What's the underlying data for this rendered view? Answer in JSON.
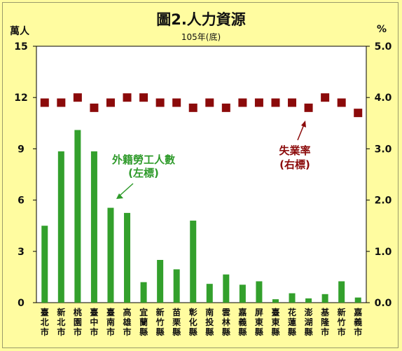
{
  "chart_data": {
    "type": "bar",
    "title": "圖2.人力資源",
    "subtitle": "105年(底)",
    "y_left_unit": "萬人",
    "y_right_unit": "%",
    "y_left_ticks": [
      "0",
      "3",
      "6",
      "9",
      "12",
      "15"
    ],
    "y_right_ticks": [
      "0.0",
      "1.0",
      "2.0",
      "3.0",
      "4.0",
      "5.0"
    ],
    "ylim_left": [
      0,
      15
    ],
    "ylim_right": [
      0,
      5
    ],
    "categories": [
      "臺北市",
      "新北市",
      "桃園市",
      "臺中市",
      "臺南市",
      "高雄市",
      "宜蘭縣",
      "新竹縣",
      "苗栗縣",
      "彰化縣",
      "南投縣",
      "雲林縣",
      "嘉義縣",
      "屏東縣",
      "臺東縣",
      "花蓮縣",
      "澎湖縣",
      "基隆市",
      "新竹市",
      "嘉義市"
    ],
    "series": [
      {
        "name": "外籍勞工人數 (左標)",
        "type": "bar",
        "axis": "left",
        "color": "#33a02c",
        "values": [
          4.5,
          8.85,
          10.1,
          8.85,
          5.55,
          5.25,
          1.2,
          2.5,
          1.95,
          4.8,
          1.1,
          1.65,
          1.05,
          1.25,
          0.2,
          0.55,
          0.25,
          0.5,
          1.25,
          0.3
        ]
      },
      {
        "name": "失業率 (右標)",
        "type": "marker",
        "axis": "right",
        "color": "#8b0a0a",
        "values": [
          3.9,
          3.9,
          4.0,
          3.8,
          3.9,
          4.0,
          4.0,
          3.9,
          3.9,
          3.8,
          3.9,
          3.8,
          3.9,
          3.9,
          3.9,
          3.9,
          3.8,
          4.0,
          3.9,
          3.7
        ]
      }
    ],
    "annotations": [
      {
        "text_line1": "外籍勞工人數",
        "text_line2": "(左標)",
        "color": "#2e9a2a"
      },
      {
        "text_line1": "失業率",
        "text_line2": "(右標)",
        "color": "#8b0a0a"
      }
    ],
    "grid": false
  }
}
